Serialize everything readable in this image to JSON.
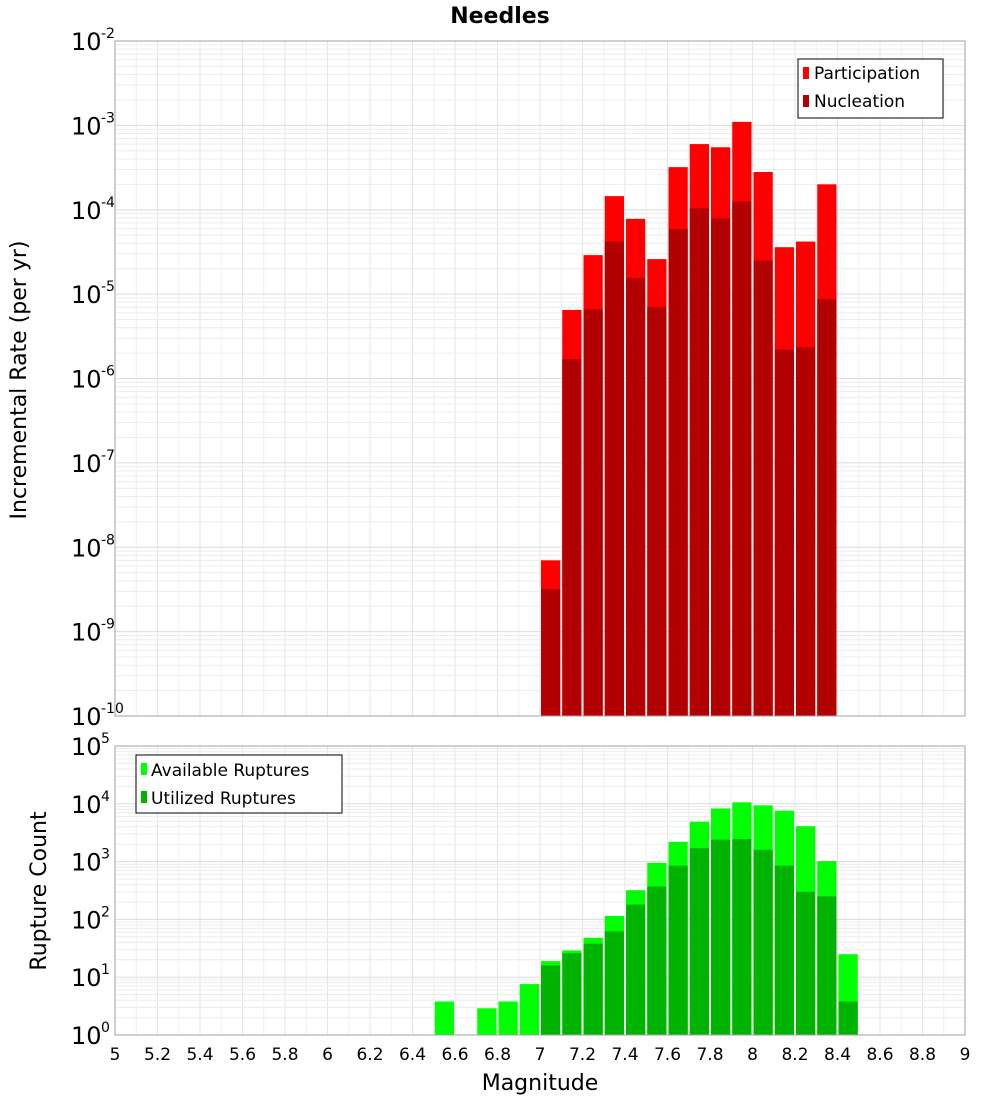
{
  "chart_data": [
    {
      "type": "bar",
      "title": "Needles",
      "xlabel": "",
      "ylabel": "Incremental Rate (per yr)",
      "yscale": "log",
      "ylim_exp": [
        -10,
        -2
      ],
      "xlim": [
        5,
        9
      ],
      "bar_width": 0.1,
      "legend_position": "top-right",
      "series": [
        {
          "name": "Participation",
          "color": "#ff0000",
          "x": [
            7.05,
            7.15,
            7.25,
            7.35,
            7.45,
            7.55,
            7.65,
            7.75,
            7.85,
            7.95,
            8.05,
            8.15,
            8.25,
            8.35
          ],
          "values": [
            7e-09,
            6.5e-06,
            2.9e-05,
            0.000145,
            7.8e-05,
            2.6e-05,
            0.00032,
            0.0006,
            0.00055,
            0.0011,
            0.00028,
            3.6e-05,
            4.2e-05,
            0.0002
          ]
        },
        {
          "name": "Nucleation",
          "color": "#b30000",
          "x": [
            7.05,
            7.15,
            7.25,
            7.35,
            7.45,
            7.55,
            7.65,
            7.75,
            7.85,
            7.95,
            8.05,
            8.15,
            8.25,
            8.35
          ],
          "values": [
            3.2e-09,
            1.7e-06,
            6.6e-06,
            4.2e-05,
            1.55e-05,
            7e-06,
            5.9e-05,
            0.000104,
            7.9e-05,
            0.000125,
            2.5e-05,
            2.2e-06,
            2.35e-06,
            8.7e-06
          ]
        }
      ]
    },
    {
      "type": "bar",
      "title": "",
      "xlabel": "Magnitude",
      "ylabel": "Rupture Count",
      "yscale": "log",
      "ylim_exp": [
        0,
        5
      ],
      "xlim": [
        5,
        9
      ],
      "bar_width": 0.1,
      "legend_position": "top-left",
      "x_ticks": [
        "5",
        "5.2",
        "5.4",
        "5.6",
        "5.8",
        "6",
        "6.2",
        "6.4",
        "6.6",
        "6.8",
        "7",
        "7.2",
        "7.4",
        "7.6",
        "7.8",
        "8",
        "8.2",
        "8.4",
        "8.6",
        "8.8",
        "9"
      ],
      "series": [
        {
          "name": "Available Ruptures",
          "color": "#00ff00",
          "x": [
            6.55,
            6.75,
            6.85,
            6.95,
            7.05,
            7.15,
            7.25,
            7.35,
            7.45,
            7.55,
            7.65,
            7.75,
            7.85,
            7.95,
            8.05,
            8.15,
            8.25,
            8.35,
            8.45
          ],
          "values": [
            3.8,
            2.9,
            3.8,
            7.6,
            19,
            29,
            48,
            115,
            320,
            950,
            2200,
            4900,
            8300,
            10600,
            9400,
            7600,
            4100,
            1020,
            25
          ]
        },
        {
          "name": "Utilized Ruptures",
          "color": "#00b300",
          "x": [
            7.05,
            7.15,
            7.25,
            7.35,
            7.45,
            7.55,
            7.65,
            7.75,
            7.85,
            7.95,
            8.05,
            8.15,
            8.25,
            8.35,
            8.45
          ],
          "values": [
            16,
            26,
            38,
            62,
            180,
            370,
            850,
            1700,
            2400,
            2450,
            1600,
            850,
            300,
            250,
            3.8
          ]
        }
      ]
    }
  ]
}
